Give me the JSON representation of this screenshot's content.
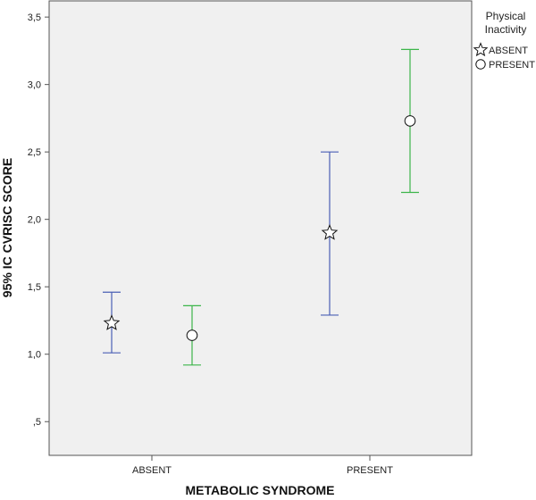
{
  "chart_data": {
    "type": "errorbar",
    "xlabel": "METABOLIC SYNDROME",
    "ylabel": "95% IC CVRISC SCORE",
    "categories": [
      "ABSENT",
      "PRESENT"
    ],
    "yticks": [
      ",5",
      "1,0",
      "1,5",
      "2,0",
      "2,5",
      "3,0",
      "3,5"
    ],
    "ylim": [
      0.25,
      3.62
    ],
    "grid": false,
    "legend": {
      "title_lines": [
        "Physical",
        "Inactivity"
      ],
      "placement": "top-right",
      "entries": [
        "ABSENT",
        "PRESENT"
      ]
    },
    "series": [
      {
        "name": "ABSENT",
        "marker": "star",
        "color": "#4a5fb5",
        "points": [
          {
            "category": "ABSENT",
            "mean": 1.23,
            "lower": 1.01,
            "upper": 1.46
          },
          {
            "category": "PRESENT",
            "mean": 1.9,
            "lower": 1.29,
            "upper": 2.5
          }
        ]
      },
      {
        "name": "PRESENT",
        "marker": "circle",
        "color": "#3cb54a",
        "points": [
          {
            "category": "ABSENT",
            "mean": 1.14,
            "lower": 0.92,
            "upper": 1.36
          },
          {
            "category": "PRESENT",
            "mean": 2.73,
            "lower": 2.2,
            "upper": 3.26
          }
        ]
      }
    ]
  }
}
